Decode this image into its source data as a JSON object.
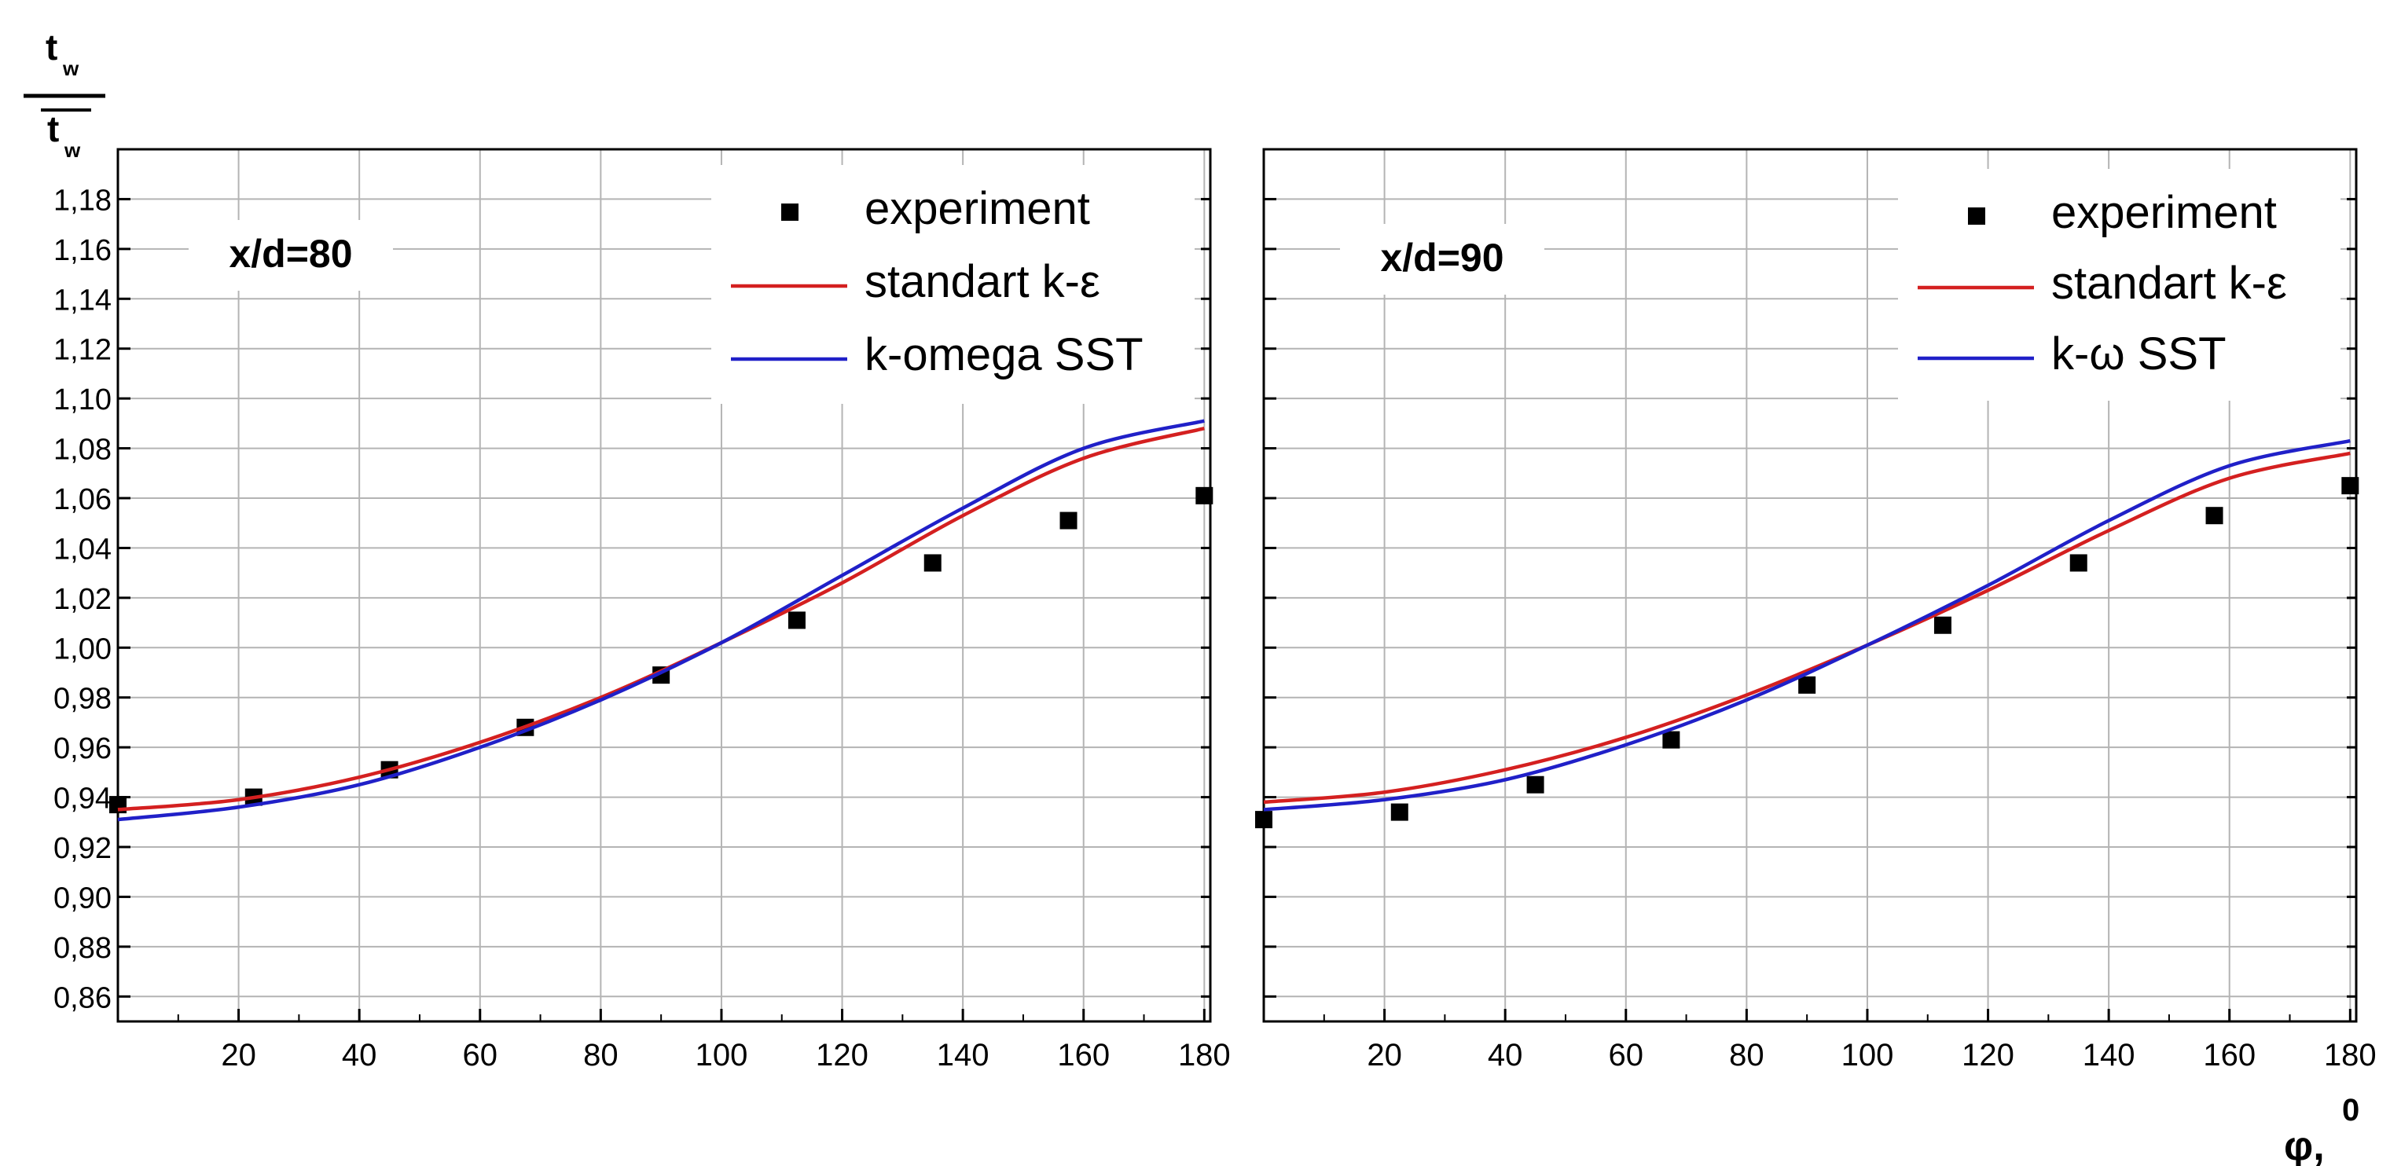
{
  "figure": {
    "y_label_numerator": "t",
    "y_label_numerator_sub": "w",
    "y_label_denominator": "t",
    "y_label_denominator_sub": "w",
    "x_label": "φ,",
    "x_label_sup": "0"
  },
  "chart_data": [
    {
      "type": "line",
      "annotation": "x/d=80",
      "xlabel": "φ,⁰",
      "ylabel": "t_w / t̄_w",
      "xlim": [
        0,
        181
      ],
      "ylim": [
        0.85,
        1.2
      ],
      "x_ticks": [
        20,
        40,
        60,
        80,
        100,
        120,
        140,
        160,
        180
      ],
      "x_tick_labels": [
        "20",
        "40",
        "60",
        "80",
        "100",
        "120",
        "140",
        "160",
        "180"
      ],
      "y_ticks": [
        0.86,
        0.88,
        0.9,
        0.92,
        0.94,
        0.96,
        0.98,
        1.0,
        1.02,
        1.04,
        1.06,
        1.08,
        1.1,
        1.12,
        1.14,
        1.16,
        1.18
      ],
      "y_tick_labels": [
        "0,86",
        "0,88",
        "0,90",
        "0,92",
        "0,94",
        "0,96",
        "0,98",
        "1,00",
        "1,02",
        "1,04",
        "1,06",
        "1,08",
        "1,10",
        "1,12",
        "1,14",
        "1,16",
        "1,18"
      ],
      "grid": true,
      "legend_position": "top-right",
      "series": [
        {
          "name": "experiment",
          "kind": "scatter",
          "color": "#000000",
          "x": [
            0,
            22.5,
            45,
            67.5,
            90,
            112.5,
            135,
            157.5,
            180
          ],
          "y": [
            0.937,
            0.94,
            0.951,
            0.968,
            0.989,
            1.011,
            1.034,
            1.051,
            1.061
          ]
        },
        {
          "name": "standart k-ε",
          "kind": "line",
          "color": "#d42020",
          "x": [
            0,
            20,
            40,
            60,
            80,
            100,
            120,
            140,
            160,
            180
          ],
          "y": [
            0.935,
            0.939,
            0.948,
            0.962,
            0.98,
            1.002,
            1.026,
            1.053,
            1.076,
            1.088
          ]
        },
        {
          "name": "k-omega SST",
          "kind": "line",
          "color": "#2020c8",
          "x": [
            0,
            20,
            40,
            60,
            80,
            100,
            120,
            140,
            160,
            180
          ],
          "y": [
            0.931,
            0.936,
            0.945,
            0.96,
            0.979,
            1.002,
            1.029,
            1.056,
            1.08,
            1.091
          ]
        }
      ]
    },
    {
      "type": "line",
      "annotation": "x/d=90",
      "xlabel": "φ,⁰",
      "ylabel": "t_w / t̄_w",
      "xlim": [
        0,
        181
      ],
      "ylim": [
        0.85,
        1.2
      ],
      "x_ticks": [
        20,
        40,
        60,
        80,
        100,
        120,
        140,
        160,
        180
      ],
      "x_tick_labels": [
        "20",
        "40",
        "60",
        "80",
        "100",
        "120",
        "140",
        "160",
        "180"
      ],
      "y_ticks": [
        0.86,
        0.88,
        0.9,
        0.92,
        0.94,
        0.96,
        0.98,
        1.0,
        1.02,
        1.04,
        1.06,
        1.08,
        1.1,
        1.12,
        1.14,
        1.16,
        1.18
      ],
      "y_tick_labels": [],
      "grid": true,
      "legend_position": "top-right",
      "series": [
        {
          "name": "experiment",
          "kind": "scatter",
          "color": "#000000",
          "x": [
            0,
            22.5,
            45,
            67.5,
            90,
            112.5,
            135,
            157.5,
            180
          ],
          "y": [
            0.931,
            0.934,
            0.945,
            0.963,
            0.985,
            1.009,
            1.034,
            1.053,
            1.065
          ]
        },
        {
          "name": "standart k-ε",
          "kind": "line",
          "color": "#d42020",
          "x": [
            0,
            20,
            40,
            60,
            80,
            100,
            120,
            140,
            160,
            180
          ],
          "y": [
            0.938,
            0.942,
            0.951,
            0.964,
            0.981,
            1.001,
            1.023,
            1.047,
            1.068,
            1.078
          ]
        },
        {
          "name": "k-ω SST",
          "kind": "line",
          "color": "#2020c8",
          "x": [
            0,
            20,
            40,
            60,
            80,
            100,
            120,
            140,
            160,
            180
          ],
          "y": [
            0.935,
            0.939,
            0.947,
            0.961,
            0.979,
            1.001,
            1.025,
            1.051,
            1.073,
            1.083
          ]
        }
      ]
    }
  ]
}
